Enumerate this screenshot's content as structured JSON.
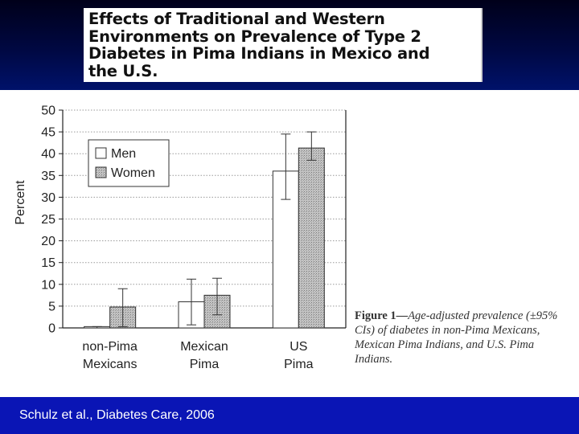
{
  "slide": {
    "title": "Effects of Traditional and Western\nEnvironments on Prevalence of Type 2\nDiabetes in Pima Indians in Mexico and\nthe U.S.",
    "citation": "Schulz et al., Diabetes Care, 2006"
  },
  "caption": {
    "figure_label": "Figure 1—",
    "text": "Age-adjusted prevalence (±95% CIs) of diabetes in non-Pima Mexicans, Mexican Pima Indians, and U.S. Pima Indians."
  },
  "colors": {
    "band_dark": "#000842",
    "band_bottom": "#0a15b5",
    "men_fill": "#ffffff",
    "women_fill": "#b8b8b8"
  },
  "chart_data": {
    "type": "bar",
    "categories": [
      [
        "non-Pima",
        "Mexicans"
      ],
      [
        "Mexican",
        "Pima"
      ],
      [
        "US",
        "Pima"
      ]
    ],
    "series": [
      {
        "name": "Men",
        "values": [
          0.3,
          6.0,
          36.0
        ],
        "ci_low": [
          0.0,
          0.7,
          29.5
        ],
        "ci_high": [
          0.3,
          11.2,
          44.5
        ]
      },
      {
        "name": "Women",
        "values": [
          4.8,
          7.5,
          41.3
        ],
        "ci_low": [
          0.3,
          3.0,
          38.5
        ],
        "ci_high": [
          9.0,
          11.4,
          45.0
        ]
      }
    ],
    "ylabel": "Percent",
    "ylim": [
      0,
      50
    ],
    "yticks": [
      0,
      5,
      10,
      15,
      20,
      25,
      30,
      35,
      40,
      45,
      50
    ],
    "grid": true,
    "legend_position": "top-left"
  }
}
